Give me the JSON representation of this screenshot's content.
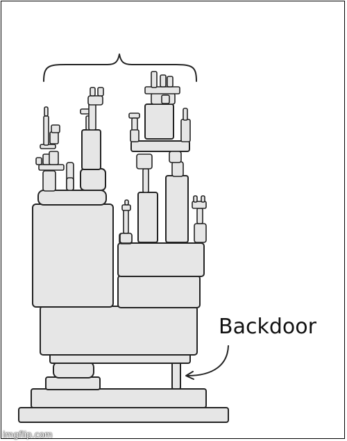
{
  "annotation": {
    "label": "Backdoor"
  },
  "watermark": {
    "text": "imgflip.com"
  },
  "colors": {
    "block_fill": "#e6e6e6",
    "stroke": "#222222",
    "background": "#ffffff"
  }
}
